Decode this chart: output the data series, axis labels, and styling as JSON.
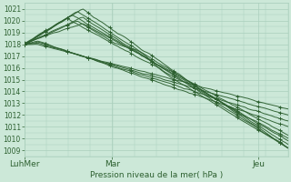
{
  "title": "Pression niveau de la mer( hPa )",
  "xlabel_ticks": [
    "LuhMer",
    "Mar",
    "Jeu"
  ],
  "xlabel_tick_positions": [
    0,
    0.333,
    0.889
  ],
  "ylim": [
    1008.5,
    1021.5
  ],
  "yticks": [
    1009,
    1010,
    1011,
    1012,
    1013,
    1014,
    1015,
    1016,
    1017,
    1018,
    1019,
    1020,
    1021
  ],
  "xlim": [
    0,
    1.0
  ],
  "bg_color": "#cce8d8",
  "grid_color": "#aacfbc",
  "line_color": "#2d6030",
  "n_hours": 100
}
